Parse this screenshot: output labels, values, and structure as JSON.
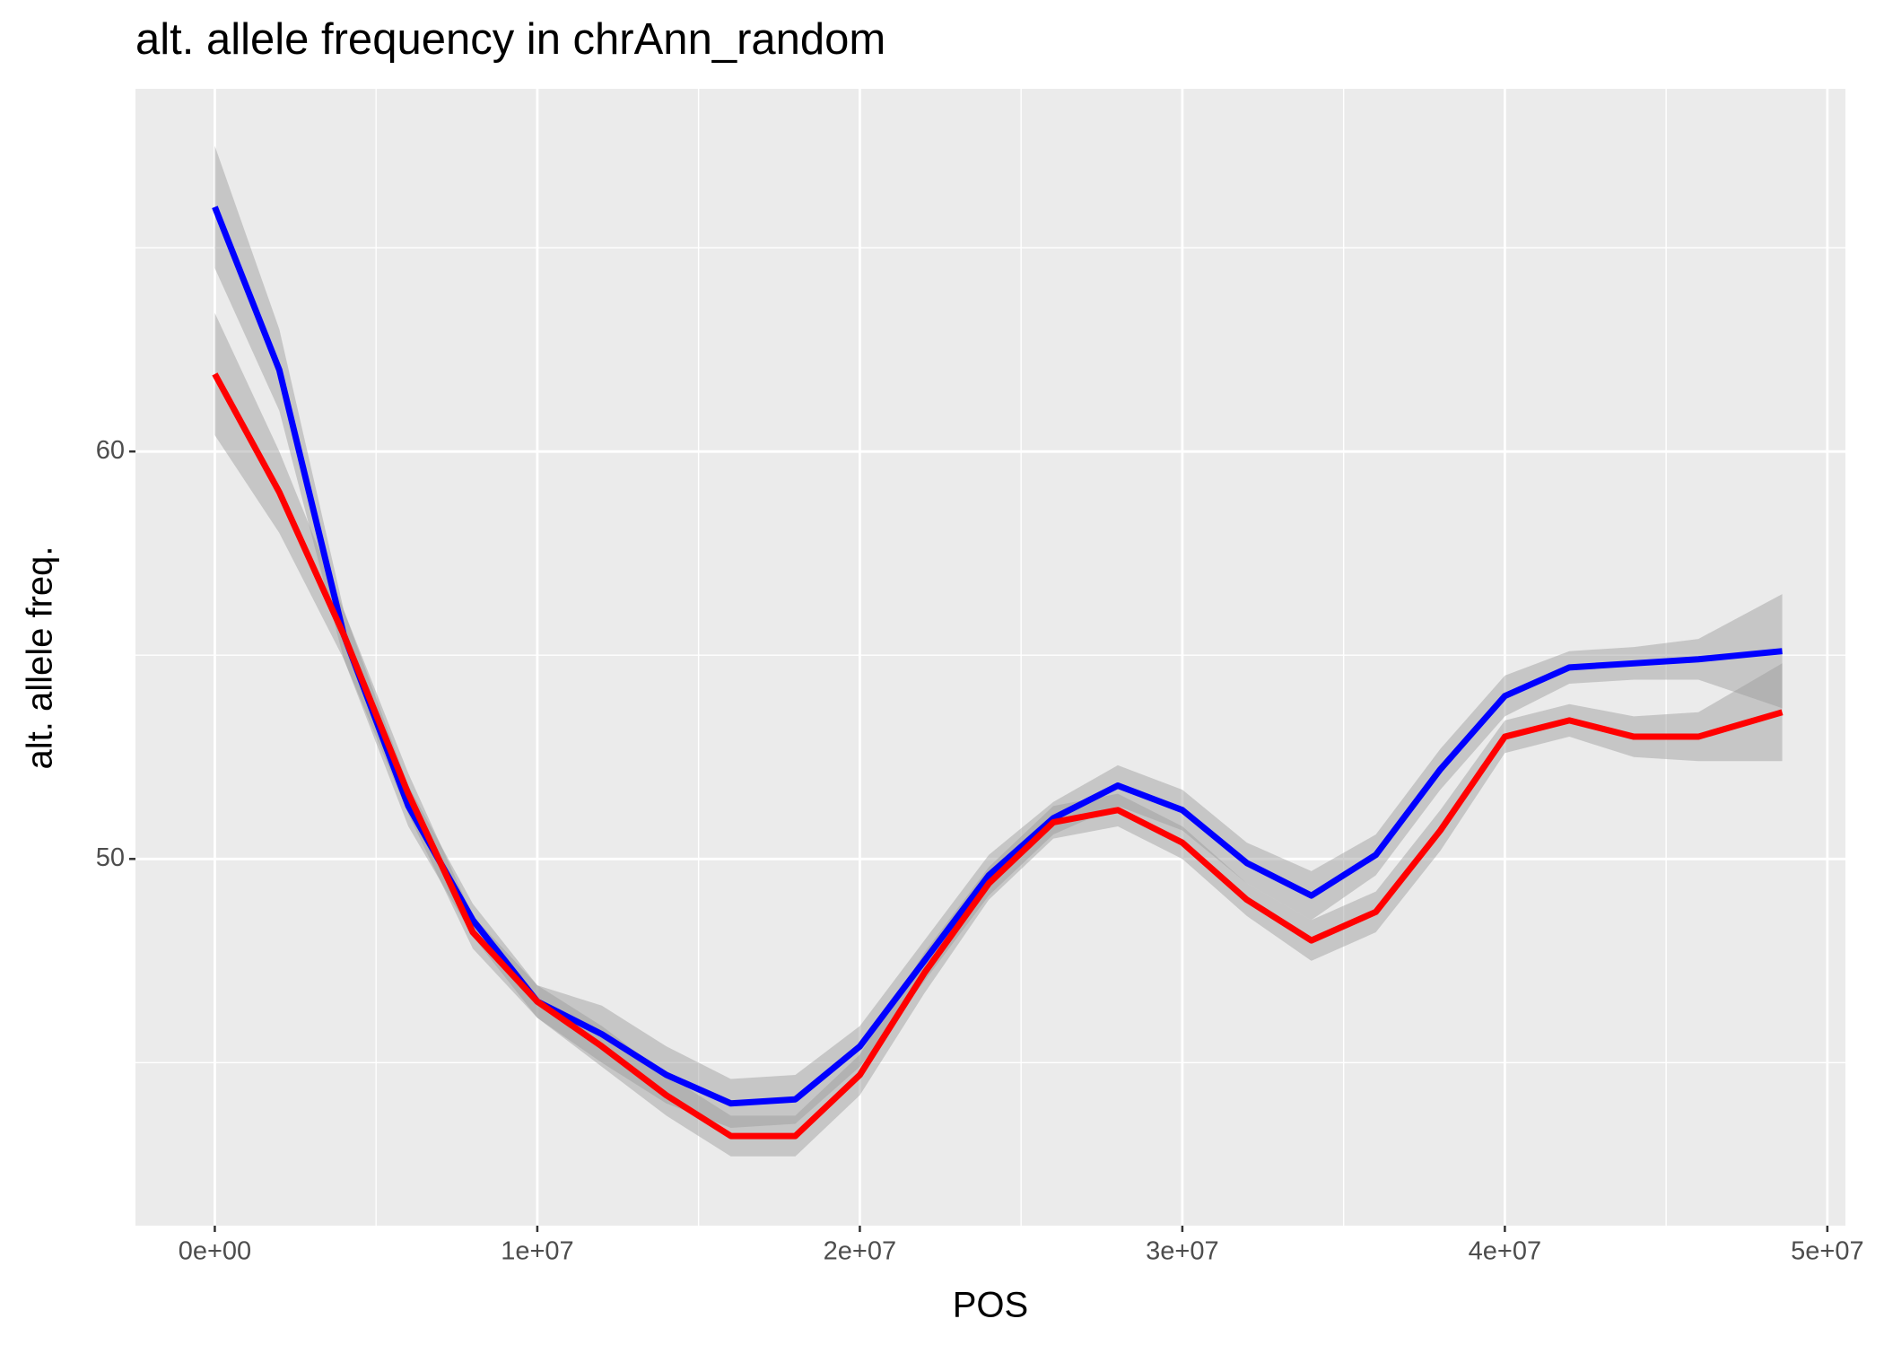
{
  "chart_data": {
    "type": "line",
    "title": "alt. allele frequency in chrAnn_random",
    "x_label": "POS",
    "y_label": "alt. allele freq.",
    "x": [
      0,
      2000000,
      4000000,
      6000000,
      8000000,
      10000000,
      12000000,
      14000000,
      16000000,
      18000000,
      20000000,
      22000000,
      24000000,
      26000000,
      28000000,
      30000000,
      32000000,
      34000000,
      36000000,
      38000000,
      40000000,
      42000000,
      44000000,
      46000000,
      48600000
    ],
    "series": [
      {
        "color": "#0000ff",
        "values": [
          66.0,
          62.0,
          55.5,
          51.3,
          48.5,
          46.5,
          45.7,
          44.7,
          44.0,
          44.1,
          45.4,
          47.5,
          49.6,
          51.0,
          51.8,
          51.2,
          49.9,
          49.1,
          50.1,
          52.2,
          54.0,
          54.7,
          54.8,
          54.9,
          55.1
        ],
        "upper": [
          67.5,
          63.0,
          56.1,
          51.8,
          48.9,
          46.9,
          46.4,
          45.4,
          44.6,
          44.7,
          45.9,
          48.0,
          50.1,
          51.4,
          52.3,
          51.7,
          50.4,
          49.7,
          50.6,
          52.7,
          54.5,
          55.1,
          55.2,
          55.4,
          56.5
        ],
        "lower": [
          64.5,
          61.0,
          54.9,
          50.8,
          48.1,
          46.1,
          45.0,
          44.0,
          43.4,
          43.5,
          44.9,
          47.0,
          49.1,
          50.6,
          51.3,
          50.7,
          49.4,
          48.5,
          49.6,
          51.7,
          53.5,
          54.3,
          54.4,
          54.4,
          53.7
        ]
      },
      {
        "color": "#ff0000",
        "values": [
          61.9,
          59.0,
          55.5,
          51.6,
          48.2,
          46.5,
          45.4,
          44.2,
          43.2,
          43.2,
          44.7,
          47.2,
          49.4,
          50.9,
          51.2,
          50.4,
          49.0,
          48.0,
          48.7,
          50.7,
          53.0,
          53.4,
          53.0,
          53.0,
          53.6
        ],
        "upper": [
          63.4,
          60.0,
          56.1,
          52.1,
          48.6,
          46.9,
          45.9,
          44.7,
          43.7,
          43.7,
          45.2,
          47.7,
          49.8,
          51.3,
          51.6,
          50.8,
          49.4,
          48.5,
          49.2,
          51.2,
          53.4,
          53.8,
          53.5,
          53.6,
          54.8
        ],
        "lower": [
          60.4,
          58.0,
          54.9,
          51.1,
          47.8,
          46.1,
          44.9,
          43.7,
          42.7,
          42.7,
          44.2,
          46.7,
          49.0,
          50.5,
          50.8,
          50.0,
          48.6,
          47.5,
          48.2,
          50.2,
          52.6,
          53.0,
          52.5,
          52.4,
          52.4
        ]
      }
    ],
    "band_color": "#999999",
    "band_opacity": 0.45,
    "xlim": [
      -2460000,
      50560000
    ],
    "ylim": [
      41.0,
      68.9
    ],
    "xticks": [
      {
        "value": 0,
        "label": "0e+00"
      },
      {
        "value": 10000000,
        "label": "1e+07"
      },
      {
        "value": 20000000,
        "label": "2e+07"
      },
      {
        "value": 30000000,
        "label": "3e+07"
      },
      {
        "value": 40000000,
        "label": "4e+07"
      },
      {
        "value": 50000000,
        "label": "5e+07"
      }
    ],
    "yticks": [
      50,
      60
    ],
    "x_minor_grid": [
      5000000,
      15000000,
      25000000,
      35000000,
      45000000
    ],
    "y_minor_grid": [
      45,
      55,
      65
    ],
    "grid": true
  }
}
